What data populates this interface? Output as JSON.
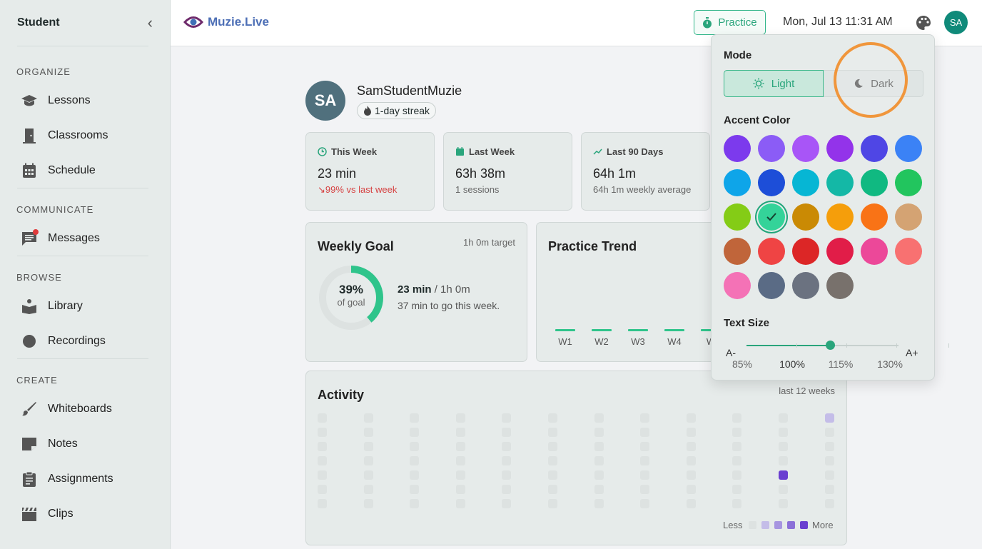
{
  "sidebar": {
    "title": "Student",
    "sections": [
      {
        "title": "ORGANIZE",
        "items": [
          {
            "label": "Lessons",
            "icon": "graduation-cap-icon"
          },
          {
            "label": "Classrooms",
            "icon": "door-icon"
          },
          {
            "label": "Schedule",
            "icon": "calendar-icon"
          }
        ]
      },
      {
        "title": "COMMUNICATE",
        "items": [
          {
            "label": "Messages",
            "icon": "chat-icon"
          }
        ]
      },
      {
        "title": "BROWSE",
        "items": [
          {
            "label": "Library",
            "icon": "book-reader-icon"
          },
          {
            "label": "Recordings",
            "icon": "record-dot-icon"
          }
        ]
      },
      {
        "title": "CREATE",
        "items": [
          {
            "label": "Whiteboards",
            "icon": "brush-icon"
          },
          {
            "label": "Notes",
            "icon": "note-icon"
          },
          {
            "label": "Assignments",
            "icon": "clipboard-icon"
          },
          {
            "label": "Clips",
            "icon": "clapper-icon"
          }
        ]
      }
    ]
  },
  "topbar": {
    "logo": "Muzie.Live",
    "practice_label": "Practice",
    "datetime": "Mon, Jul 13 11:31 AM",
    "avatar": "SA"
  },
  "profile": {
    "initials": "SA",
    "name": "SamStudentMuzie",
    "streak": "1-day streak"
  },
  "stats": [
    {
      "title": "This Week",
      "value": "23 min",
      "sub": "99% vs last week",
      "sub_color": "#d64242"
    },
    {
      "title": "Last Week",
      "value": "63h 38m",
      "sub": "1 sessions"
    },
    {
      "title": "Last 90 Days",
      "value": "64h 1m",
      "sub": "64h 1m weekly average"
    }
  ],
  "weekly_goal": {
    "title": "Weekly Goal",
    "target": "1h 0m target",
    "percent": 0.39,
    "percent_label": "39%",
    "of_goal": "of goal",
    "current": "23 min",
    "goal_total": " / 1h 0m",
    "remaining": "37 min to go this week."
  },
  "trend": {
    "title": "Practice Trend",
    "weeks": [
      "W1",
      "W2",
      "W3",
      "W4",
      "W"
    ]
  },
  "activity": {
    "title": "Activity",
    "range": "last 12 weeks",
    "less": "Less",
    "more": "More",
    "legend_colors": [
      "#dde2e1",
      "#c4bde8",
      "#a695e0",
      "#8b70d8",
      "#6a3fd0"
    ],
    "cells": [
      {
        "col": 11,
        "row": 0,
        "color": "#c4bde8"
      },
      {
        "col": 10,
        "row": 4,
        "color": "#6a3fd0"
      }
    ]
  },
  "popover": {
    "mode_label": "Mode",
    "light_label": "Light",
    "dark_label": "Dark",
    "accent_label": "Accent Color",
    "accents": [
      "#7c3aed",
      "#8b5cf6",
      "#a855f7",
      "#9333ea",
      "#4f46e5",
      "#3b82f6",
      "#0ea5e9",
      "#1d4ed8",
      "#06b6d4",
      "#14b8a6",
      "#10b981",
      "#22c55e",
      "#84cc16",
      "#34d399",
      "#ca8a04",
      "#f59e0b",
      "#f97316",
      "#d4a373",
      "#c0653a",
      "#ef4444",
      "#dc2626",
      "#e11d48",
      "#ec4899",
      "#f87171",
      "#f472b6",
      "#5a6b85",
      "#6b7280",
      "#78716c"
    ],
    "selected_accent": 13,
    "text_size_label": "Text Size",
    "a_minus": "A-",
    "a_plus": "A+",
    "sizes": [
      "85%",
      "100%",
      "115%",
      "130%"
    ],
    "selected_size": 1
  }
}
